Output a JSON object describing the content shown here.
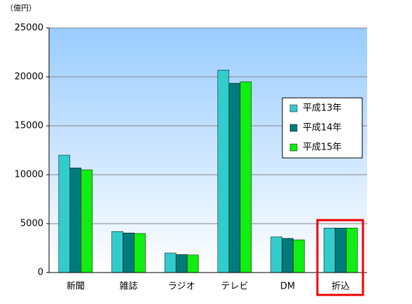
{
  "chart_data": {
    "type": "bar",
    "y_axis_label": "（億円）",
    "categories": [
      "新聞",
      "雑誌",
      "ラジオ",
      "テレビ",
      "DM",
      "折込"
    ],
    "series": [
      {
        "name": "平成13年",
        "color": "#33cccc",
        "values": [
          12000,
          4200,
          2000,
          20700,
          3650,
          4550
        ]
      },
      {
        "name": "平成14年",
        "color": "#007b7b",
        "values": [
          10700,
          4050,
          1850,
          19350,
          3500,
          4550
        ]
      },
      {
        "name": "平成15年",
        "color": "#11ee11",
        "values": [
          10500,
          4000,
          1800,
          19500,
          3350,
          4550
        ]
      }
    ],
    "ylim": [
      0,
      25000
    ],
    "yticks": [
      0,
      5000,
      10000,
      15000,
      20000,
      25000
    ],
    "grid": true
  }
}
